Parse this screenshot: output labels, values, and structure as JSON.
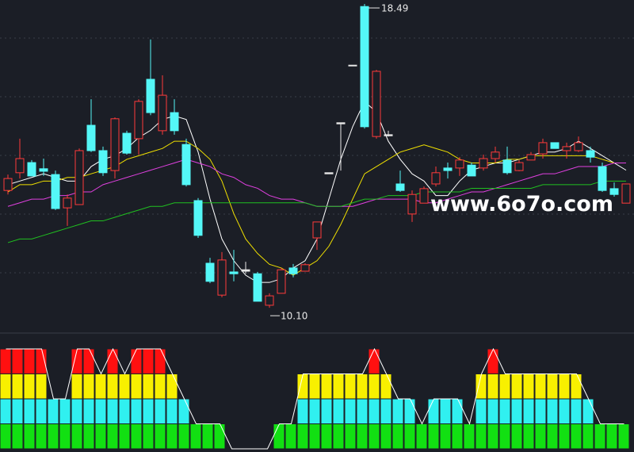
{
  "chart_data": {
    "type": "candlestick",
    "ylim": [
      9.7,
      18.6
    ],
    "up_color": "#ff3b3b",
    "down_color": "#54f7f7",
    "open": [
      13.34,
      13.83,
      14.11,
      13.94,
      13.78,
      12.86,
      12.95,
      15.14,
      14.44,
      13.89,
      14.92,
      14.77,
      16.41,
      14.99,
      15.49,
      14.61,
      13.06,
      11.33,
      10.45,
      11.09,
      11.11,
      11.04,
      10.17,
      10.5,
      11.2,
      11.11,
      12.03,
      13.83,
      15.21,
      16.8,
      18.42,
      14.83,
      14.88,
      13.52,
      12.69,
      12.99,
      13.52,
      13.96,
      13.96,
      14.04,
      13.96,
      14.22,
      14.18,
      13.89,
      14.18,
      14.35,
      14.66,
      14.44,
      14.44,
      14.44,
      14.0,
      13.39,
      12.99
    ],
    "high": [
      13.78,
      14.77,
      14.18,
      14.22,
      13.89,
      13.23,
      14.5,
      15.86,
      14.55,
      15.36,
      14.99,
      15.86,
      17.51,
      16.52,
      15.86,
      14.77,
      13.13,
      11.48,
      11.64,
      11.7,
      11.37,
      11.09,
      10.5,
      11.2,
      11.31,
      11.33,
      12.47,
      13.83,
      15.21,
      16.8,
      18.49,
      16.67,
      14.99,
      13.89,
      13.34,
      13.45,
      14.0,
      14.11,
      14.26,
      14.11,
      14.33,
      14.55,
      14.55,
      14.18,
      14.4,
      14.77,
      14.66,
      14.66,
      14.83,
      14.55,
      14.11,
      13.56,
      13.52
    ],
    "low": [
      13.23,
      13.67,
      13.74,
      13.74,
      12.8,
      12.36,
      12.95,
      14.4,
      13.74,
      13.67,
      14.33,
      14.33,
      15.42,
      14.88,
      14.88,
      13.45,
      12.03,
      10.78,
      10.39,
      10.83,
      11.04,
      10.28,
      10.1,
      10.5,
      10.94,
      11.11,
      11.7,
      13.8,
      13.89,
      16.78,
      15.05,
      14.77,
      14.83,
      13.3,
      12.47,
      12.99,
      13.45,
      13.67,
      13.74,
      13.74,
      13.89,
      14.11,
      13.78,
      13.87,
      14.18,
      14.22,
      14.5,
      14.22,
      14.4,
      14.11,
      13.3,
      13.17,
      12.99
    ],
    "close": [
      13.67,
      14.22,
      13.74,
      13.87,
      12.84,
      13.13,
      14.44,
      14.44,
      13.83,
      15.32,
      14.37,
      15.8,
      15.49,
      15.97,
      14.99,
      13.5,
      12.1,
      10.83,
      11.42,
      11.04,
      11.15,
      10.28,
      10.43,
      11.15,
      11.04,
      11.29,
      12.47,
      13.8,
      15.18,
      16.78,
      15.1,
      16.63,
      14.85,
      13.34,
      13.23,
      13.39,
      13.83,
      13.89,
      14.18,
      13.74,
      14.22,
      14.4,
      13.83,
      14.11,
      14.33,
      14.66,
      14.5,
      14.55,
      14.66,
      14.26,
      13.34,
      13.23,
      13.52
    ],
    "lines": [
      {
        "color": "#ffffff",
        "values": [
          13.5,
          13.6,
          13.7,
          13.8,
          13.7,
          13.6,
          13.6,
          14.0,
          14.2,
          14.3,
          14.5,
          14.8,
          15.0,
          15.3,
          15.4,
          15.3,
          14.4,
          13.1,
          12.0,
          11.4,
          11.0,
          10.8,
          10.8,
          10.9,
          11.2,
          11.4,
          12.0,
          13.1,
          14.2,
          15.1,
          15.8,
          15.5,
          14.7,
          14.2,
          13.8,
          13.6,
          13.2,
          13.2,
          13.6,
          13.9,
          14.0,
          14.1,
          14.1,
          14.2,
          14.3,
          14.4,
          14.4,
          14.5,
          14.7,
          14.5,
          14.3,
          14.1,
          13.9
        ]
      },
      {
        "color": "#f0e000",
        "values": [
          13.3,
          13.5,
          13.5,
          13.6,
          13.6,
          13.7,
          13.7,
          13.8,
          13.9,
          14.0,
          14.2,
          14.3,
          14.4,
          14.5,
          14.7,
          14.7,
          14.5,
          14.2,
          13.6,
          12.7,
          12.0,
          11.6,
          11.3,
          11.2,
          11.0,
          11.2,
          11.4,
          11.8,
          12.4,
          13.1,
          13.8,
          14.0,
          14.2,
          14.4,
          14.5,
          14.6,
          14.5,
          14.4,
          14.2,
          14.1,
          14.1,
          14.1,
          14.2,
          14.2,
          14.3,
          14.3,
          14.3,
          14.3,
          14.3,
          14.3,
          14.2,
          14.1,
          14.1
        ]
      },
      {
        "color": "#e040e0",
        "values": [
          12.9,
          13.0,
          13.1,
          13.1,
          13.2,
          13.2,
          13.3,
          13.3,
          13.5,
          13.6,
          13.7,
          13.8,
          13.9,
          14.0,
          14.1,
          14.2,
          14.1,
          14.0,
          13.8,
          13.7,
          13.5,
          13.4,
          13.2,
          13.1,
          13.1,
          13.0,
          12.9,
          12.9,
          12.9,
          12.9,
          13.0,
          13.1,
          13.1,
          13.1,
          13.1,
          13.0,
          13.0,
          13.1,
          13.2,
          13.3,
          13.3,
          13.4,
          13.5,
          13.6,
          13.7,
          13.8,
          13.8,
          13.9,
          14.0,
          14.0,
          14.0,
          14.1,
          14.1
        ]
      },
      {
        "color": "#20c020",
        "values": [
          11.9,
          12.0,
          12.0,
          12.1,
          12.2,
          12.3,
          12.4,
          12.5,
          12.5,
          12.6,
          12.7,
          12.8,
          12.9,
          12.9,
          13.0,
          13.0,
          13.0,
          13.0,
          13.0,
          13.0,
          13.0,
          13.0,
          13.0,
          13.0,
          13.0,
          13.0,
          12.9,
          12.9,
          12.9,
          13.0,
          13.1,
          13.1,
          13.2,
          13.2,
          13.2,
          13.3,
          13.3,
          13.3,
          13.3,
          13.4,
          13.4,
          13.4,
          13.4,
          13.4,
          13.4,
          13.5,
          13.5,
          13.5,
          13.5,
          13.5,
          13.6,
          13.6,
          13.6
        ]
      }
    ],
    "annotations": [
      "18.49",
      "10.10"
    ],
    "watermark": "www.6o7o.com",
    "indicator": {
      "type": "bar",
      "ylim": [
        0,
        4
      ],
      "colors": [
        "#12e012",
        "#30f0f0",
        "#f8f000",
        "#ff1010"
      ],
      "values": [
        4,
        4,
        4,
        4,
        2,
        2,
        4,
        4,
        3,
        4,
        3,
        4,
        4,
        4,
        3,
        2,
        1,
        1,
        1,
        0,
        0,
        0,
        0,
        1,
        1,
        3,
        3,
        3,
        3,
        3,
        3,
        4,
        3,
        2,
        2,
        1,
        2,
        2,
        2,
        1,
        3,
        4,
        3,
        3,
        3,
        3,
        3,
        3,
        3,
        2,
        1,
        1,
        1
      ]
    }
  }
}
